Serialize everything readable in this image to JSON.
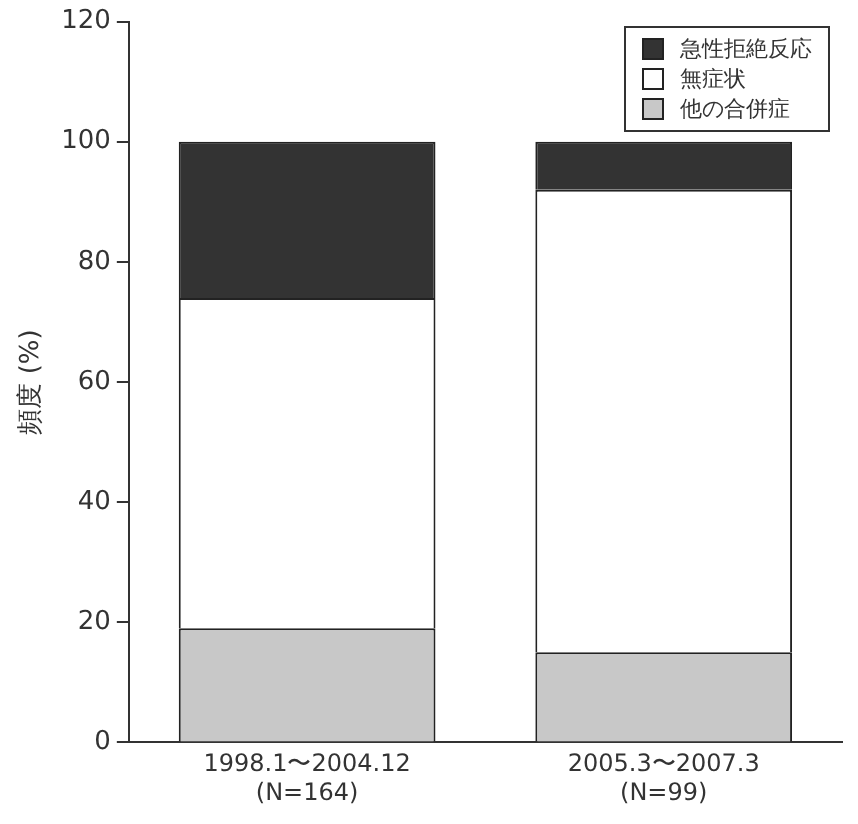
{
  "chart_data": {
    "type": "bar",
    "stacked": true,
    "ylabel": "頻度 (%)",
    "categories": [
      "1998.1〜2004.12\n(N=164)",
      "2005.3〜2007.3\n(N=99)"
    ],
    "series": [
      {
        "name": "他の合併症",
        "color": "#c8c8c8",
        "values": [
          19,
          15
        ]
      },
      {
        "name": "無症状",
        "color": "#ffffff",
        "values": [
          55,
          77
        ]
      },
      {
        "name": "急性拒絶反応",
        "color": "#333333",
        "values": [
          26,
          8
        ]
      }
    ],
    "ylim": [
      0,
      120
    ],
    "yticks": [
      0,
      20,
      40,
      60,
      80,
      100,
      120
    ],
    "grid": false,
    "legend": "top right"
  }
}
